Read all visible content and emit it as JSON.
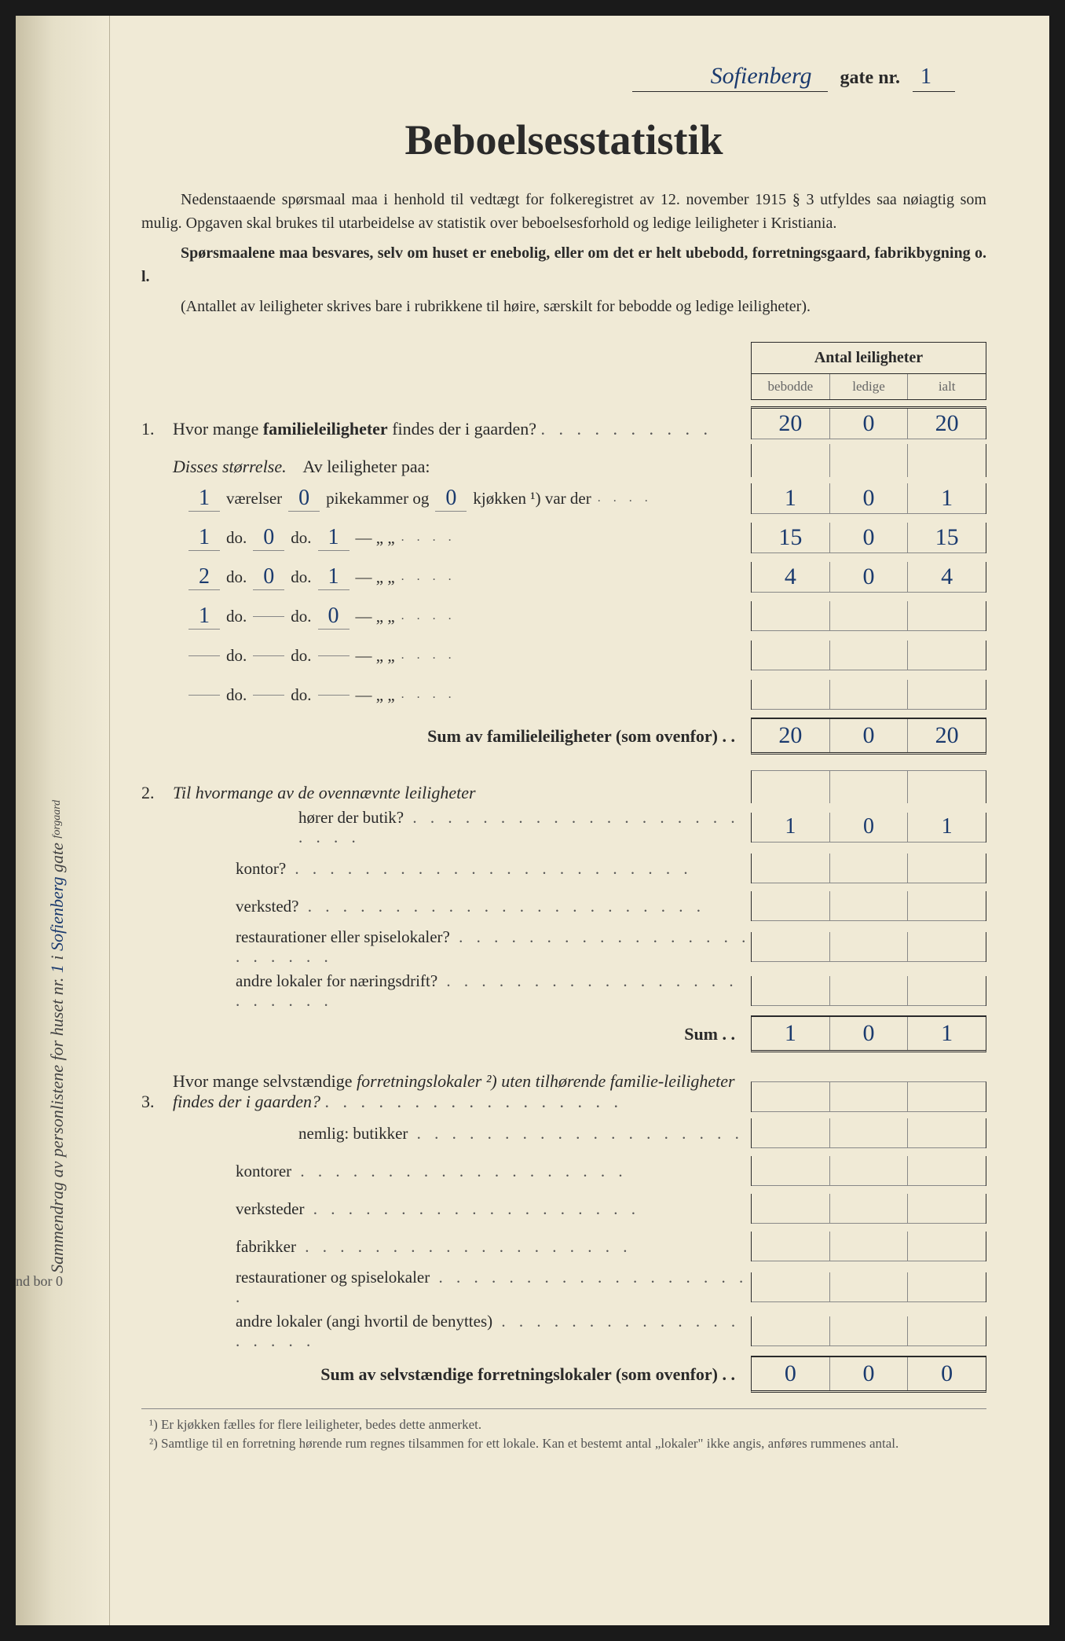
{
  "colors": {
    "paper_bg": "#f0ead6",
    "ink_printed": "#2a2a2a",
    "ink_handwritten": "#1a3a6e",
    "ink_pencil": "#888888",
    "border": "#888888"
  },
  "header": {
    "street_name": "Sofienberg",
    "gate_label": "gate nr.",
    "gate_number": "1"
  },
  "title": "Beboelsesstatistik",
  "intro": {
    "p1": "Nedenstaaende spørsmaal maa i henhold til vedtægt for folkeregistret av 12. november 1915 § 3 utfyldes saa nøiagtig som mulig. Opgaven skal brukes til utarbeidelse av statistik over beboelsesforhold og ledige leiligheter i Kristiania.",
    "p2": "Spørsmaalene maa besvares, selv om huset er enebolig, eller om det er helt ubebodd, forretningsgaard, fabrikbygning o. l.",
    "p3": "(Antallet av leiligheter skrives bare i rubrikkene til høire, særskilt for bebodde og ledige leiligheter)."
  },
  "table_header": {
    "title": "Antal leiligheter",
    "col1": "bebodde",
    "col2": "ledige",
    "col3": "ialt"
  },
  "q1": {
    "num": "1.",
    "text_a": "Hvor mange ",
    "text_b": "familieleiligheter",
    "text_c": " findes der i gaarden?",
    "cells": [
      "20",
      "0",
      "20"
    ],
    "subtitle_a": "Disses størrelse.",
    "subtitle_b": "Av leiligheter paa:",
    "size_rows": [
      {
        "v": "1",
        "p": "0",
        "k": "0",
        "label1": "værelser",
        "label2": "pikekammer og",
        "label3": "kjøkken ¹) var der",
        "cells": [
          "1",
          "0",
          "1"
        ]
      },
      {
        "v": "1",
        "p": "0",
        "k": "1",
        "label1": "do.",
        "label2": "do.",
        "label3": "—        „     „",
        "cells": [
          "15",
          "0",
          "15"
        ]
      },
      {
        "v": "2",
        "p": "0",
        "k": "1",
        "label1": "do.",
        "label2": "do.",
        "label3": "—        „     „",
        "cells": [
          "4",
          "0",
          "4"
        ]
      },
      {
        "v": "1",
        "p": "",
        "k": "0",
        "label1": "do.",
        "label2": "do.",
        "label3": "—        „     „",
        "cells": [
          "",
          "",
          ""
        ]
      },
      {
        "v": "",
        "p": "",
        "k": "",
        "label1": "do.",
        "label2": "do.",
        "label3": "—        „     „",
        "cells": [
          "",
          "",
          ""
        ]
      },
      {
        "v": "",
        "p": "",
        "k": "",
        "label1": "do.",
        "label2": "do.",
        "label3": "—        „     „",
        "cells": [
          "",
          "",
          ""
        ]
      }
    ],
    "sum_label": "Sum av familieleiligheter (som ovenfor) . .",
    "sum_cells": [
      "20",
      "0",
      "20"
    ]
  },
  "q2": {
    "num": "2.",
    "text": "Til hvormange av de ovennævnte leiligheter",
    "subrows": [
      {
        "text": "hører der butik?",
        "cells": [
          "1",
          "0",
          "1"
        ]
      },
      {
        "text": "kontor?",
        "cells": [
          "",
          "",
          ""
        ]
      },
      {
        "text": "verksted?",
        "cells": [
          "",
          "",
          ""
        ]
      },
      {
        "text": "restaurationer eller spiselokaler?",
        "cells": [
          "",
          "",
          ""
        ]
      },
      {
        "text": "andre lokaler for næringsdrift?",
        "cells": [
          "",
          "",
          ""
        ]
      }
    ],
    "sum_label": "Sum . .",
    "sum_cells": [
      "1",
      "0",
      "1"
    ]
  },
  "q3": {
    "num": "3.",
    "text_a": "Hvor mange selvstændige ",
    "text_b": "forretningslokaler ²)",
    "text_c": " uten tilhørende familie-leiligheter findes der i gaarden?",
    "subrows": [
      {
        "text": "nemlig: butikker",
        "cells": [
          "",
          "",
          ""
        ]
      },
      {
        "text": "kontorer",
        "cells": [
          "",
          "",
          ""
        ]
      },
      {
        "text": "verksteder",
        "cells": [
          "",
          "",
          ""
        ]
      },
      {
        "text": "fabrikker",
        "cells": [
          "",
          "",
          ""
        ]
      },
      {
        "text": "restaurationer og spiselokaler",
        "cells": [
          "",
          "",
          ""
        ]
      },
      {
        "text": "andre lokaler (angi hvortil de benyttes)",
        "cells": [
          "",
          "",
          ""
        ]
      }
    ],
    "sum_label": "Sum av selvstændige forretningslokaler (som ovenfor) . .",
    "sum_cells": [
      "0",
      "0",
      "0"
    ]
  },
  "footnotes": {
    "f1": "¹) Er kjøkken fælles for flere leiligheter, bedes dette anmerket.",
    "f2": "²) Samtlige til en forretning hørende rum regnes tilsammen for ett lokale. Kan et bestemt antal „lokaler\" ikke angis, anføres rummenes antal."
  },
  "side_text": {
    "a": "Sammendrag av personlistene for huset nr.",
    "b": "1",
    "c": "i",
    "d": "Sofienberg",
    "e": "gate",
    "f": "forgaard"
  },
  "corner": "nd bor\n0"
}
